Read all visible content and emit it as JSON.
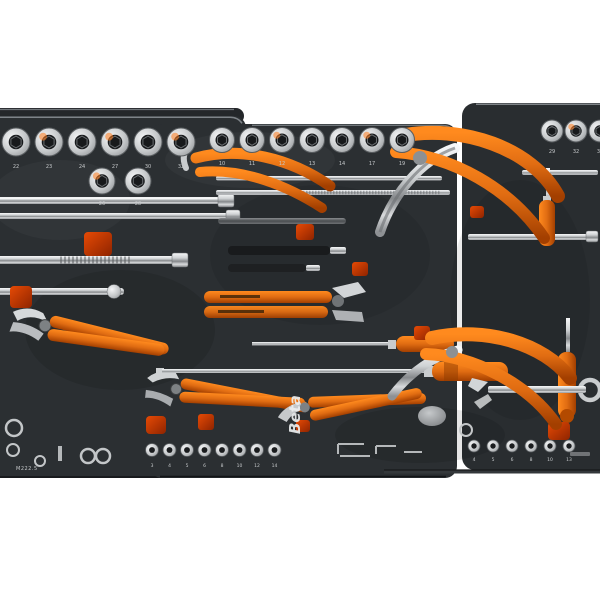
{
  "photo": {
    "brand_logo": "Beta",
    "module_code": "M222.5"
  },
  "colors": {
    "background": "#ffffff",
    "foam": "#2b2f32",
    "foam_dark": "#1e2124",
    "foam_edge_highlight": "#878d91",
    "orange": "#e06c12",
    "orange_deep": "#b34a00",
    "pad_red": "#c23400",
    "chrome_light": "#f2f3f4",
    "chrome_mid": "#9a9da0",
    "label_text": "#c6c9cb"
  },
  "socket_groups": [
    {
      "id": "left-row-1",
      "name": "socket-row-large",
      "labels": [
        "22",
        "23",
        "24",
        "27",
        "30",
        "32"
      ]
    },
    {
      "id": "left-row-2",
      "name": "socket-row-extra",
      "labels": [
        "26",
        "28"
      ]
    },
    {
      "id": "main-row",
      "name": "socket-row-medium",
      "labels": [
        "10",
        "11",
        "12",
        "13",
        "14",
        "17",
        "19"
      ]
    },
    {
      "id": "right-row",
      "name": "socket-row-right",
      "labels": [
        "29",
        "32",
        "36"
      ]
    }
  ],
  "bit_rows": [
    {
      "id": "main-bits",
      "name": "bit-row-main",
      "labels": [
        "3",
        "4",
        "5",
        "6",
        "8",
        "10",
        "12",
        "14"
      ]
    },
    {
      "id": "right-bits",
      "name": "bit-row-right",
      "labels": [
        "4",
        "5",
        "6",
        "8",
        "10",
        "13"
      ]
    }
  ]
}
